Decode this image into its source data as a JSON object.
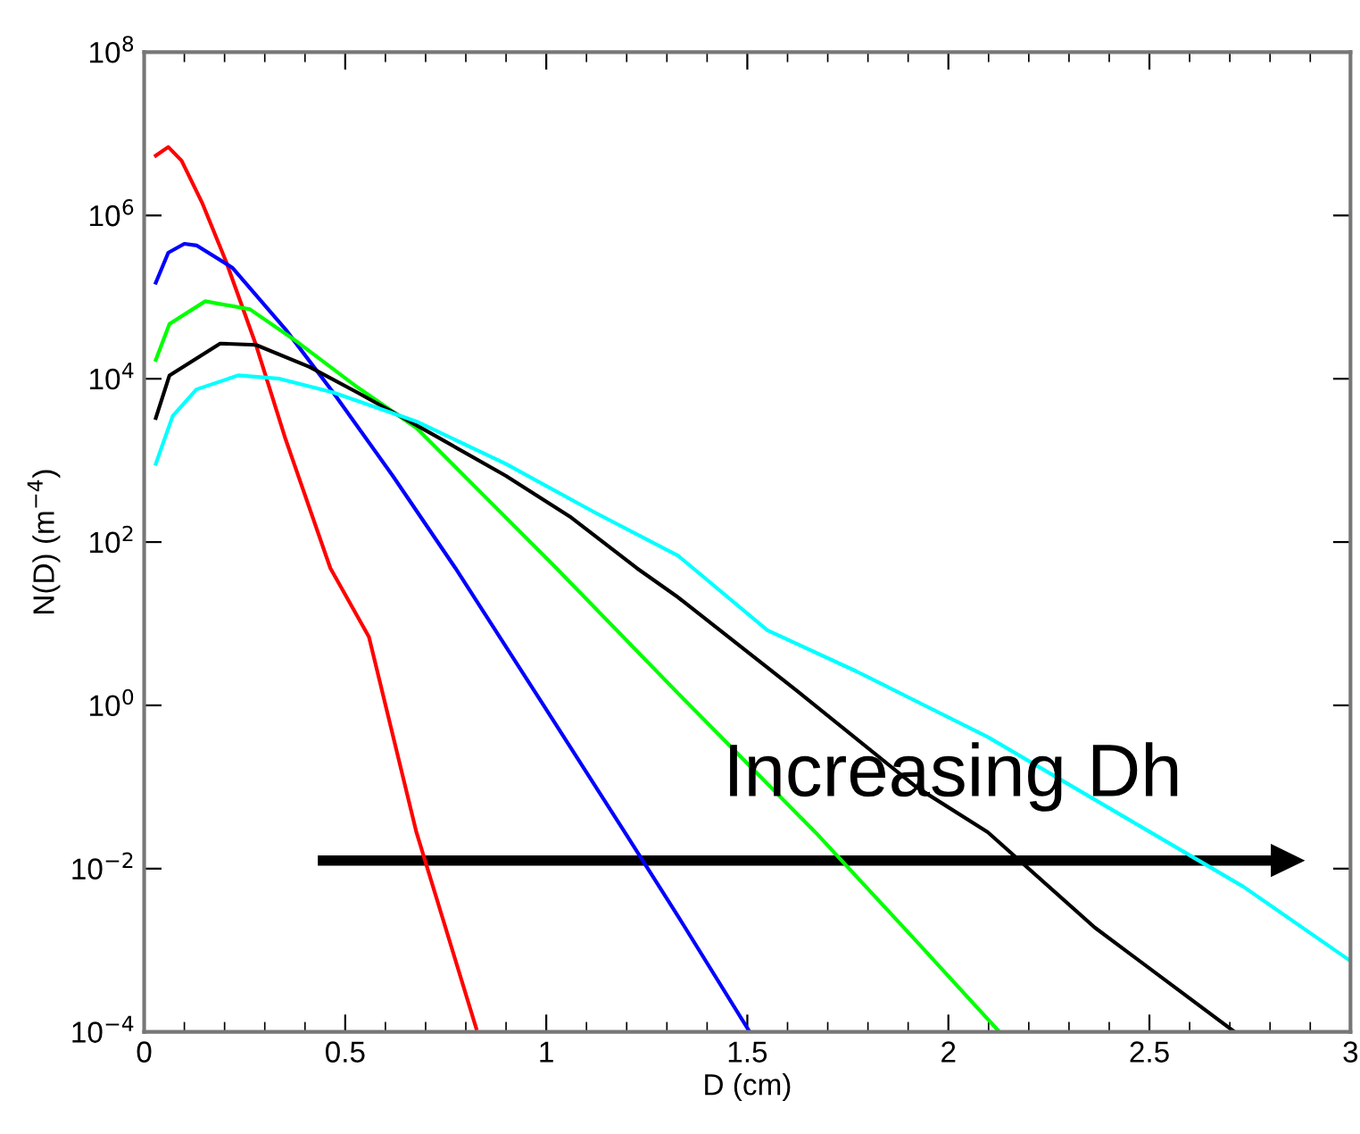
{
  "chart_data": {
    "type": "line",
    "xlabel": "D (cm)",
    "ylabel": "N(D) (m$^{−4}$)",
    "log": "y",
    "xlim": [
      0,
      3
    ],
    "xticks": [
      0,
      0.5,
      1,
      1.5,
      2,
      2.5,
      3
    ],
    "ylim": [
      0.0001,
      100000000
    ],
    "yticks": [
      {
        "value": 0.0001,
        "label": "10$^{−4}$"
      },
      {
        "value": 0.01,
        "label": "10$^{−2}$"
      },
      {
        "value": 1,
        "label": "10$^{0}$"
      },
      {
        "value": 100,
        "label": "10$^{2}$"
      },
      {
        "value": 10000,
        "label": "10$^{4}$"
      },
      {
        "value": 1000000,
        "label": "10$^{6}$"
      },
      {
        "value": 100000000,
        "label": "10$^{8}$"
      }
    ],
    "grid": false,
    "marker": "none",
    "line_style": "solid",
    "annotations": [
      "Increasing Dh"
    ],
    "series": [
      {
        "color": "#ff0000",
        "x": [
          0.029,
          0.06,
          0.093,
          0.145,
          0.204,
          0.278,
          0.352,
          0.463,
          0.559,
          0.677,
          0.826
        ],
        "values": [
          5400000,
          6900000,
          4700000,
          1400000,
          270000,
          26000,
          1800,
          48,
          6.9,
          0.028,
          0.00011
        ]
      },
      {
        "color": "#0000ff",
        "x": [
          0.029,
          0.06,
          0.1,
          0.13,
          0.219,
          0.352,
          0.47,
          0.618,
          0.774,
          0.988,
          1.195,
          1.328,
          1.506
        ],
        "values": [
          150000,
          350000,
          450000,
          430000,
          230000,
          40000,
          6800,
          650,
          48,
          1.1,
          0.028,
          0.0026,
          0.0001
        ]
      },
      {
        "color": "#00ff00",
        "x": [
          0.029,
          0.063,
          0.152,
          0.263,
          0.382,
          0.53,
          0.677,
          0.855,
          1.025,
          1.328,
          1.669,
          1.92,
          2.127
        ],
        "values": [
          17000,
          47000,
          89000,
          71000,
          28000,
          7900,
          2500,
          330,
          48,
          1.4,
          0.028,
          0.0013,
          0.0001
        ]
      },
      {
        "color": "#000000",
        "x": [
          0.029,
          0.063,
          0.189,
          0.278,
          0.411,
          0.53,
          0.677,
          0.899,
          1.062,
          1.225,
          1.328,
          1.624,
          1.92,
          2.098,
          2.364,
          2.712
        ],
        "values": [
          3300,
          11000,
          27000,
          26000,
          14000,
          6800,
          2700,
          650,
          200,
          48,
          21,
          1.5,
          0.1,
          0.028,
          0.0019,
          0.0001
        ]
      },
      {
        "color": "#00ffff",
        "x": [
          0.029,
          0.071,
          0.13,
          0.234,
          0.337,
          0.47,
          0.677,
          0.899,
          1.121,
          1.328,
          1.55,
          1.772,
          2.098,
          2.482,
          2.734,
          3.0
        ],
        "values": [
          910,
          3500,
          7400,
          11000,
          10000,
          6800,
          3000,
          910,
          230,
          68,
          8.3,
          2.6,
          0.41,
          0.032,
          0.006,
          0.00074
        ]
      }
    ]
  }
}
